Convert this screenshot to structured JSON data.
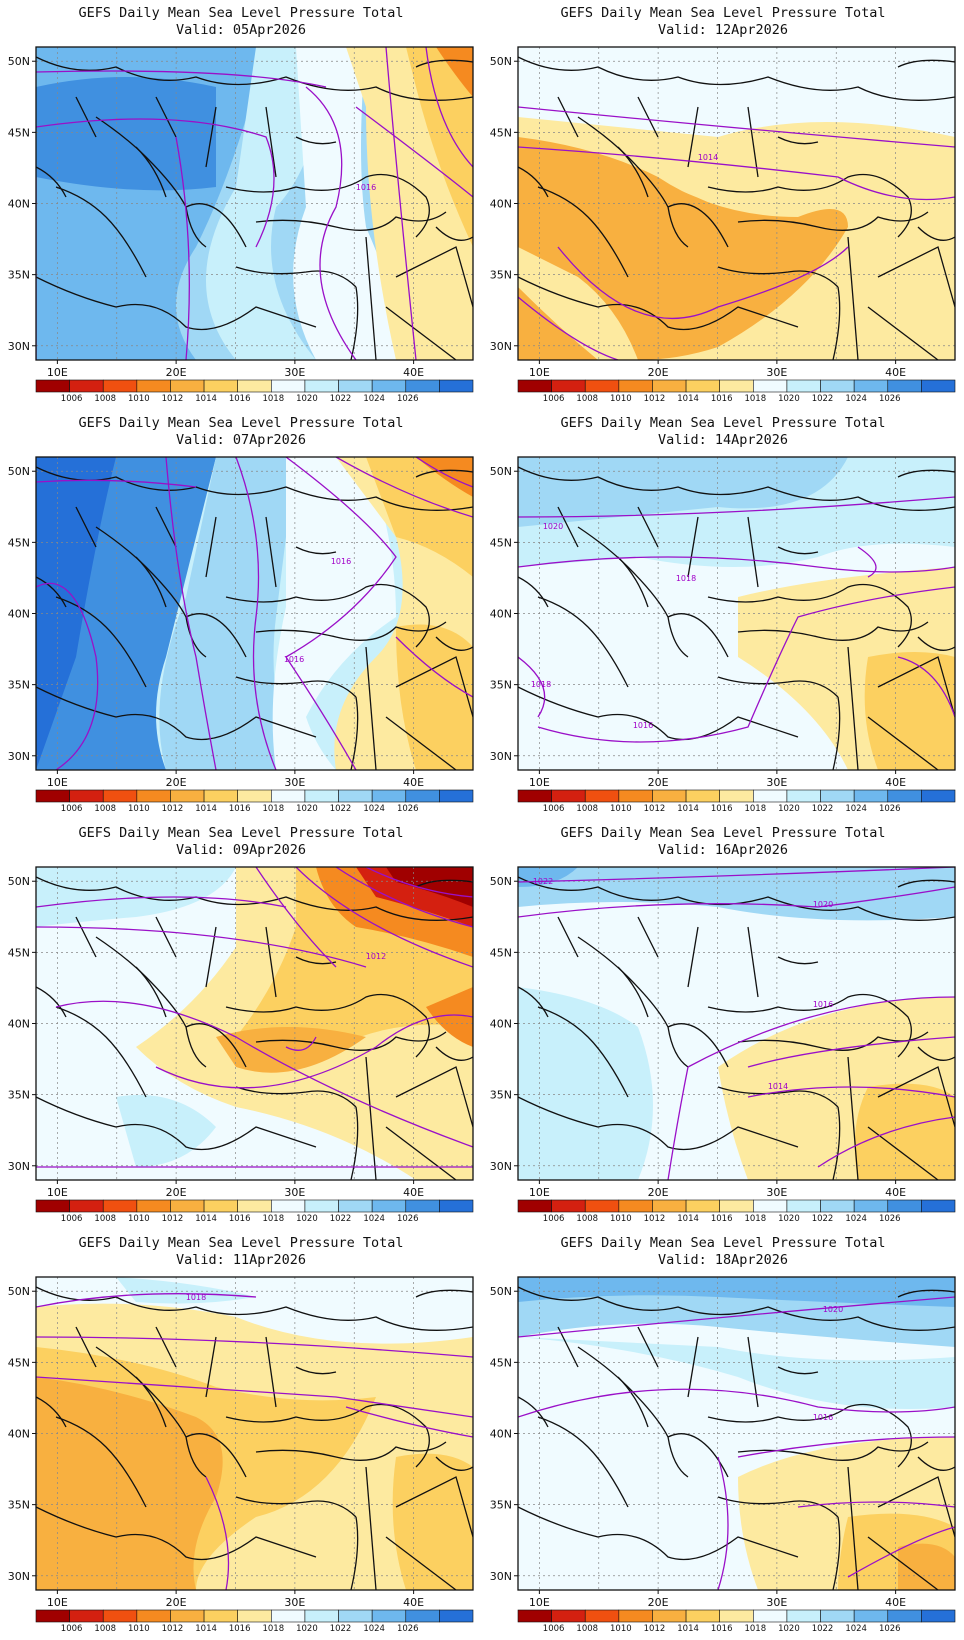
{
  "title": "GEFS Daily Mean Sea Level Pressure Total",
  "valid_prefix": "Valid:",
  "lat_ticks": [
    "50N",
    "45N",
    "40N",
    "35N",
    "30N"
  ],
  "lon_ticks": [
    "10E",
    "20E",
    "30E",
    "40E"
  ],
  "colorbar": {
    "labels": [
      "1006",
      "1008",
      "1010",
      "1012",
      "1014",
      "1016",
      "1018",
      "1020",
      "1022",
      "1024",
      "1026"
    ],
    "colors": [
      "#a00000",
      "#d42010",
      "#f05010",
      "#f58a20",
      "#f8b040",
      "#fcd060",
      "#fdeaa0",
      "#f0fbff",
      "#c8f0fb",
      "#a0d8f5",
      "#6eb8ee",
      "#4090e0",
      "#2570d8"
    ]
  },
  "panels": [
    {
      "valid": "05Apr2026",
      "contour_labels": [
        "1016"
      ]
    },
    {
      "valid": "12Apr2026",
      "contour_labels": [
        "1014"
      ]
    },
    {
      "valid": "07Apr2026",
      "contour_labels": [
        "1016",
        "1016"
      ]
    },
    {
      "valid": "14Apr2026",
      "contour_labels": [
        "1020",
        "1018",
        "1018",
        "1016"
      ]
    },
    {
      "valid": "09Apr2026",
      "contour_labels": [
        "1012"
      ]
    },
    {
      "valid": "16Apr2026",
      "contour_labels": [
        "1022",
        "1020",
        "1016",
        "1014"
      ]
    },
    {
      "valid": "11Apr2026",
      "contour_labels": [
        "1018"
      ]
    },
    {
      "valid": "18Apr2026",
      "contour_labels": [
        "1020",
        "1016"
      ]
    }
  ]
}
